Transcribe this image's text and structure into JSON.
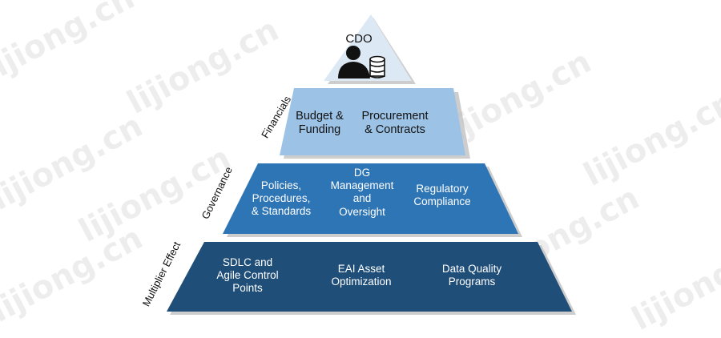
{
  "top": {
    "title": "CDO",
    "icon": "person-with-database-icon"
  },
  "financials": {
    "label": "Financials",
    "items": [
      "Budget &\nFunding",
      "Procurement\n& Contracts"
    ]
  },
  "governance": {
    "label": "Governance",
    "items": [
      "Policies,\nProcedures,\n& Standards",
      "DG\nManagement\nand\nOversight",
      "Regulatory\nCompliance"
    ]
  },
  "multiplier": {
    "label": "Multiplier Effect",
    "items": [
      "SDLC and\nAgile Control\nPoints",
      "EAI Asset\nOptimization",
      "Data Quality\nPrograms"
    ]
  },
  "watermark": "lijiong.cn",
  "colors": {
    "top": "#dce8f4",
    "financials": "#9cc3e6",
    "governance": "#2e75b6",
    "multiplier": "#1f4e79",
    "shadow": "#b8b8b8"
  }
}
